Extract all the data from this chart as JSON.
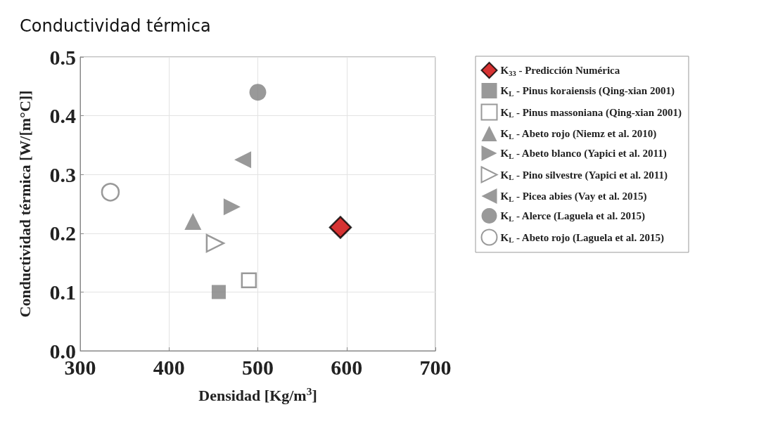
{
  "chart_data": {
    "type": "scatter",
    "title": "Conductividad térmica",
    "xlabel": "Densidad [Kg/m$^{3}$]",
    "ylabel": "Conductividad térmica [W/[m°C]]",
    "xlim": [
      300,
      700
    ],
    "xticks": [
      300,
      400,
      500,
      600,
      700
    ],
    "ylim": [
      0,
      0.5
    ],
    "yticks": [
      {
        "value": 0,
        "label": "0.0"
      },
      {
        "value": 0.1,
        "label": "0.1"
      },
      {
        "value": 0.2,
        "label": "0.2"
      },
      {
        "value": 0.3,
        "label": "0.3"
      },
      {
        "value": 0.4,
        "label": "0.4"
      },
      {
        "value": 0.5,
        "label": "0.5"
      }
    ],
    "grid": true,
    "legend": "right",
    "series": [
      {
        "name": "K$_{33}$ - Predicción Numérica",
        "color": "#cc0000",
        "marker": "diamond",
        "x": [
          593
        ],
        "values": [
          0.21
        ]
      },
      {
        "name": "K$_{L}$ - Pinus koraiensis (Qing-xian 2001)",
        "color": "#7f7f7f",
        "marker": "square",
        "x": [
          456
        ],
        "values": [
          0.1
        ]
      },
      {
        "name": "K$_{L}$ - Pinus massoniana (Qing-xian 2001)",
        "color": "#7f7f7f",
        "marker": "square-open",
        "x": [
          490
        ],
        "values": [
          0.12
        ]
      },
      {
        "name": "K$_{L}$ - Abeto rojo (Niemz et al. 2010)",
        "color": "#7f7f7f",
        "marker": "triangle",
        "x": [
          427
        ],
        "values": [
          0.22
        ]
      },
      {
        "name": "K$_{L}$ - Abeto blanco (Yapici et al. 2011)",
        "color": "#7f7f7f",
        "marker": "triangle-right",
        "x": [
          471
        ],
        "values": [
          0.245
        ]
      },
      {
        "name": "K$_{L}$ - Pino silvestre (Yapici et al. 2011)",
        "color": "#7f7f7f",
        "marker": "triangle-right-open",
        "x": [
          452
        ],
        "values": [
          0.183
        ]
      },
      {
        "name": "K$_{L}$ - Picea abies (Vay et al. 2015)",
        "color": "#7f7f7f",
        "marker": "triangle-left",
        "x": [
          483
        ],
        "values": [
          0.325
        ]
      },
      {
        "name": "K$_{L}$ - Alerce (Laguela et al. 2015)",
        "color": "#7f7f7f",
        "marker": "circle",
        "x": [
          500
        ],
        "values": [
          0.44
        ]
      },
      {
        "name": "K$_{L}$ - Abeto rojo (Laguela et al. 2015)",
        "color": "#7f7f7f",
        "marker": "circle-open",
        "x": [
          334
        ],
        "values": [
          0.27
        ]
      }
    ]
  }
}
